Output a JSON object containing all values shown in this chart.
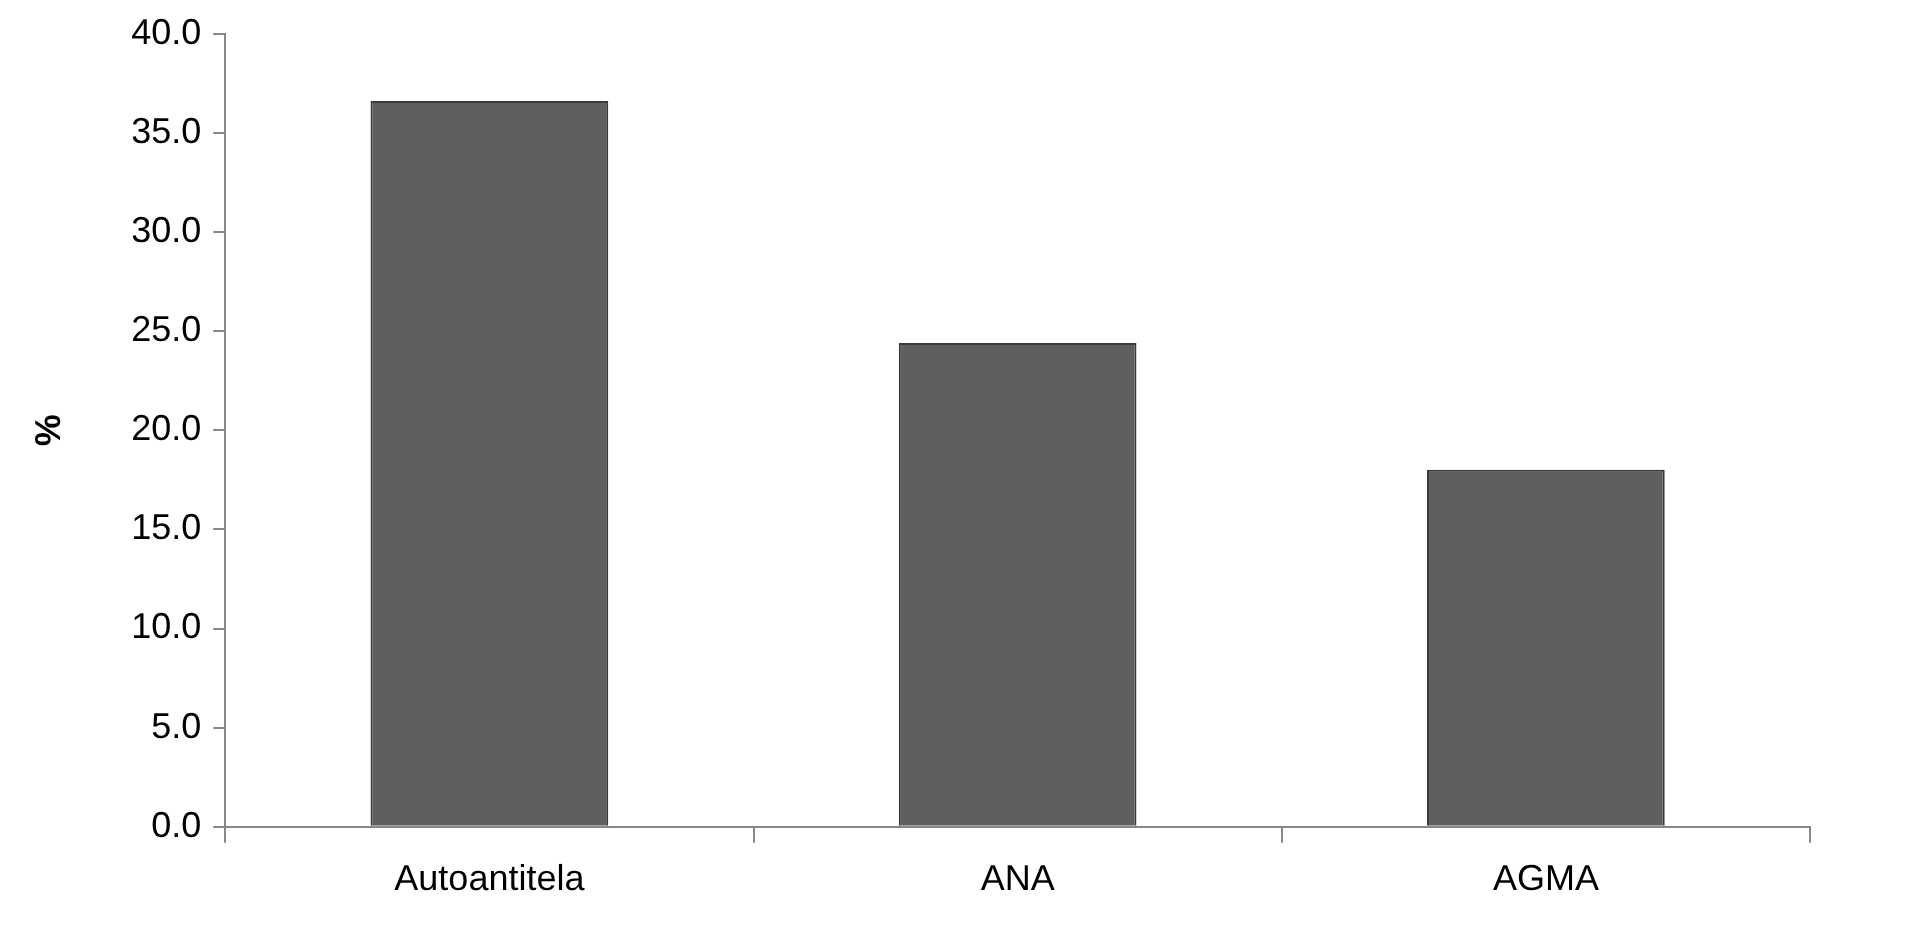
{
  "chart_data": {
    "type": "bar",
    "ylabel": "%",
    "categories": [
      "Autoantitela",
      "ANA",
      "AGMA"
    ],
    "values": [
      36.6,
      24.4,
      18.0
    ],
    "color": "#5f5f5f",
    "ylim": [
      0,
      40
    ],
    "yticks": [
      {
        "value": 0,
        "label": "0.0"
      },
      {
        "value": 5,
        "label": "5.0"
      },
      {
        "value": 10,
        "label": "10.0"
      },
      {
        "value": 15,
        "label": "15.0"
      },
      {
        "value": 20,
        "label": "20.0"
      },
      {
        "value": 25,
        "label": "25.0"
      },
      {
        "value": 30,
        "label": "30.0"
      },
      {
        "value": 35,
        "label": "35.0"
      },
      {
        "value": 40,
        "label": "40.0"
      }
    ]
  }
}
